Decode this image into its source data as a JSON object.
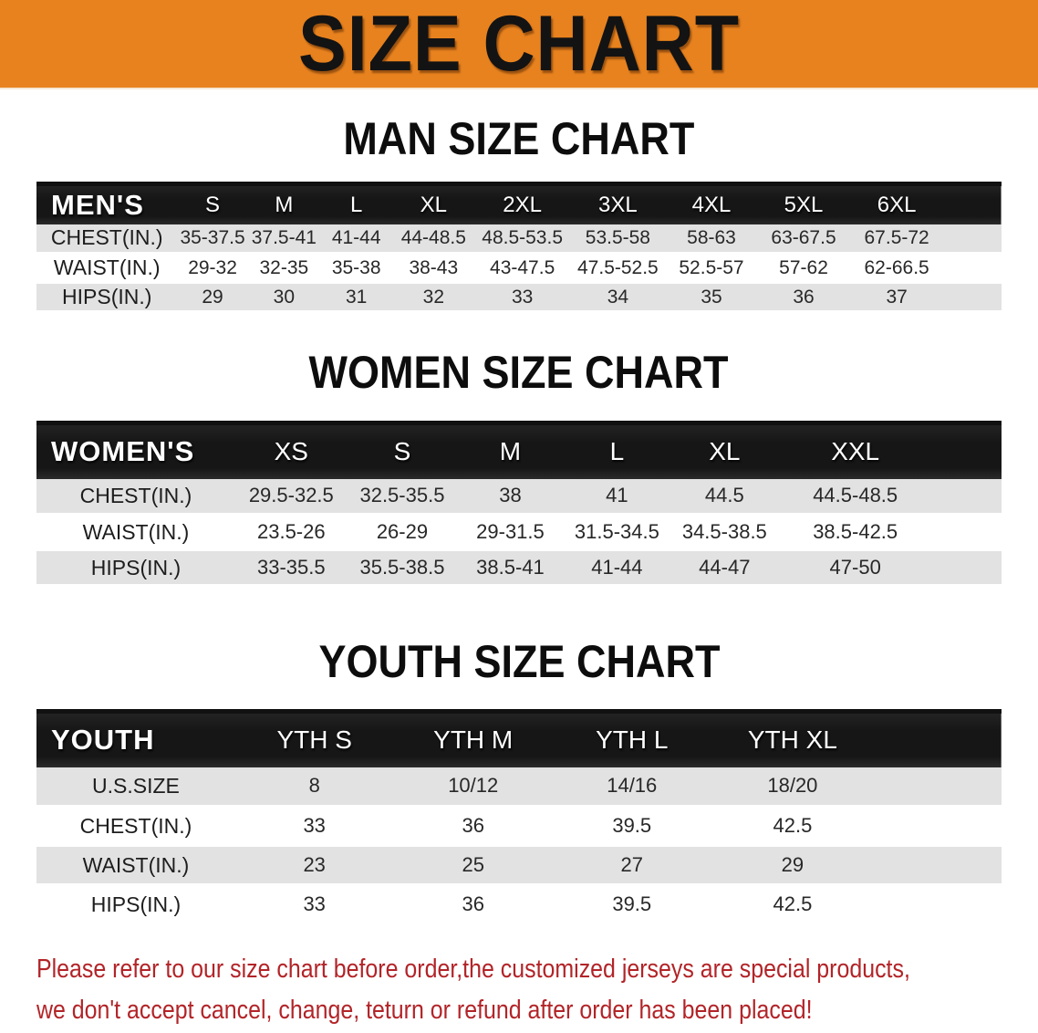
{
  "banner": {
    "title": "SIZE CHART"
  },
  "colors": {
    "orange": "#E8821E",
    "header-black": "#1A1A1A",
    "row-gray": "#E2E2E2",
    "text-dark": "#282828",
    "footer-red": "#B22428"
  },
  "sections": [
    {
      "heading": "MAN SIZE CHART",
      "table": {
        "label": "MEN'S",
        "columns": [
          "S",
          "M",
          "L",
          "XL",
          "2XL",
          "3XL",
          "4XL",
          "5XL",
          "6XL"
        ],
        "rows": [
          {
            "label": "CHEST(IN.)",
            "values": [
              "35-37.5",
              "37.5-41",
              "41-44",
              "44-48.5",
              "48.5-53.5",
              "53.5-58",
              "58-63",
              "63-67.5",
              "67.5-72"
            ]
          },
          {
            "label": "WAIST(IN.)",
            "values": [
              "29-32",
              "32-35",
              "35-38",
              "38-43",
              "43-47.5",
              "47.5-52.5",
              "52.5-57",
              "57-62",
              "62-66.5"
            ]
          },
          {
            "label": "HIPS(IN.)",
            "values": [
              "29",
              "30",
              "31",
              "32",
              "33",
              "34",
              "35",
              "36",
              "37"
            ]
          }
        ]
      }
    },
    {
      "heading": "WOMEN SIZE CHART",
      "table": {
        "label": "WOMEN'S",
        "columns": [
          "XS",
          "S",
          "M",
          "L",
          "XL",
          "XXL"
        ],
        "rows": [
          {
            "label": "CHEST(IN.)",
            "values": [
              "29.5-32.5",
              "32.5-35.5",
              "38",
              "41",
              "44.5",
              "44.5-48.5"
            ]
          },
          {
            "label": "WAIST(IN.)",
            "values": [
              "23.5-26",
              "26-29",
              "29-31.5",
              "31.5-34.5",
              "34.5-38.5",
              "38.5-42.5"
            ]
          },
          {
            "label": "HIPS(IN.)",
            "values": [
              "33-35.5",
              "35.5-38.5",
              "38.5-41",
              "41-44",
              "44-47",
              "47-50"
            ]
          }
        ]
      }
    },
    {
      "heading": "YOUTH SIZE CHART",
      "table": {
        "label": "YOUTH",
        "columns": [
          "YTH S",
          "YTH M",
          "YTH L",
          "YTH XL"
        ],
        "rows": [
          {
            "label": "U.S.SIZE",
            "values": [
              "8",
              "10/12",
              "14/16",
              "18/20"
            ]
          },
          {
            "label": "CHEST(IN.)",
            "values": [
              "33",
              "36",
              "39.5",
              "42.5"
            ]
          },
          {
            "label": "WAIST(IN.)",
            "values": [
              "23",
              "25",
              "27",
              "29"
            ]
          },
          {
            "label": "HIPS(IN.)",
            "values": [
              "33",
              "36",
              "39.5",
              "42.5"
            ]
          }
        ]
      }
    }
  ],
  "footer": {
    "line1": "Please refer to our size chart before order,the customized jerseys are special products,",
    "line2": "we don't accept cancel, change, teturn or refund after order has been placed!"
  }
}
